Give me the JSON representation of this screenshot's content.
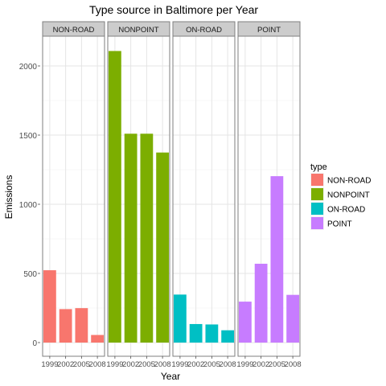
{
  "chart_data": {
    "type": "bar",
    "title": "Type source in Baltimore per Year",
    "xlabel": "Year",
    "ylabel": "Emissions",
    "x": [
      1999,
      2002,
      2005,
      2008
    ],
    "x_tick_labels": [
      "1999",
      "2002",
      "2005",
      "2008"
    ],
    "ylim": [
      0,
      2200
    ],
    "y_ticks": [
      0,
      500,
      1000,
      1500,
      2000
    ],
    "grid": true,
    "legend": {
      "title": "type",
      "position": "right"
    },
    "panels": [
      {
        "name": "NON-ROAD",
        "color": "#F8766D",
        "values": [
          523,
          242,
          249,
          55
        ]
      },
      {
        "name": "NONPOINT",
        "color": "#7CAE00",
        "values": [
          2108,
          1510,
          1510,
          1374
        ]
      },
      {
        "name": "ON-ROAD",
        "color": "#00BFC4",
        "values": [
          347,
          134,
          131,
          89
        ]
      },
      {
        "name": "POINT",
        "color": "#C77CFF",
        "values": [
          296,
          570,
          1203,
          345
        ]
      }
    ]
  }
}
